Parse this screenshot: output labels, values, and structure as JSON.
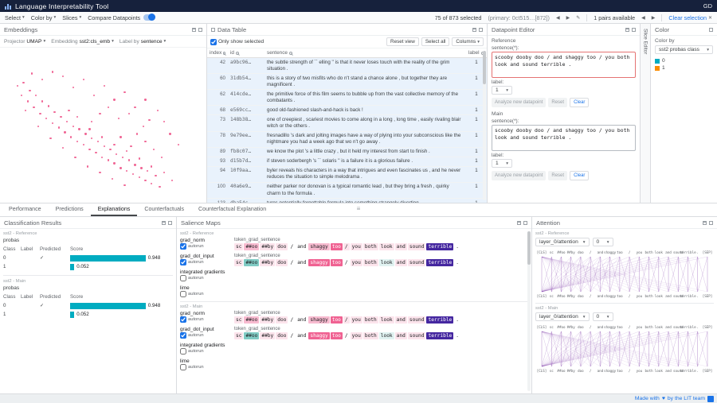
{
  "header": {
    "title": "Language Interpretability Tool",
    "user": "GD"
  },
  "toolbar": {
    "select": "Select",
    "color_by": "Color by",
    "slices": "Slices",
    "compare": "Compare Datapoints",
    "selection": "75 of 873 selected",
    "primary": "(primary: 0ct515…[872])",
    "pairs": "1 pairs available",
    "clear": "Clear selection"
  },
  "embeddings": {
    "title": "Embeddings",
    "controls": [
      {
        "label": "Projector",
        "value": "UMAP"
      },
      {
        "label": "Embedding",
        "value": "sst2:cls_emb"
      },
      {
        "label": "Label by",
        "value": "sentence"
      }
    ],
    "dot_color": "#ec407a",
    "points": [
      [
        8,
        24
      ],
      [
        10,
        30
      ],
      [
        11,
        22
      ],
      [
        13,
        34
      ],
      [
        14,
        27
      ],
      [
        16,
        38
      ],
      [
        17,
        30
      ],
      [
        19,
        42
      ],
      [
        20,
        34
      ],
      [
        22,
        45
      ],
      [
        23,
        37
      ],
      [
        25,
        48
      ],
      [
        26,
        41
      ],
      [
        28,
        51
      ],
      [
        29,
        44
      ],
      [
        31,
        54
      ],
      [
        32,
        47
      ],
      [
        34,
        57
      ],
      [
        35,
        50
      ],
      [
        37,
        60
      ],
      [
        38,
        52
      ],
      [
        40,
        62
      ],
      [
        41,
        55
      ],
      [
        43,
        65
      ],
      [
        44,
        58
      ],
      [
        46,
        67
      ],
      [
        47,
        60
      ],
      [
        49,
        70
      ],
      [
        50,
        63
      ],
      [
        52,
        72
      ],
      [
        53,
        65
      ],
      [
        55,
        74
      ],
      [
        56,
        68
      ],
      [
        58,
        77
      ],
      [
        59,
        70
      ],
      [
        61,
        79
      ],
      [
        62,
        72
      ],
      [
        64,
        81
      ],
      [
        65,
        75
      ],
      [
        67,
        83
      ],
      [
        68,
        77
      ],
      [
        70,
        85
      ],
      [
        71,
        79
      ],
      [
        73,
        87
      ],
      [
        75,
        82
      ],
      [
        77,
        89
      ],
      [
        35,
        25
      ],
      [
        40,
        20
      ],
      [
        45,
        30
      ],
      [
        50,
        24
      ],
      [
        55,
        33
      ],
      [
        60,
        28
      ],
      [
        65,
        38
      ],
      [
        70,
        33
      ],
      [
        48,
        42
      ],
      [
        52,
        38
      ],
      [
        57,
        45
      ],
      [
        62,
        42
      ],
      [
        30,
        18
      ],
      [
        25,
        15
      ],
      [
        66,
        55
      ],
      [
        70,
        60
      ],
      [
        74,
        65
      ],
      [
        78,
        70
      ],
      [
        20,
        20
      ],
      [
        15,
        16
      ],
      [
        44,
        47
      ],
      [
        58,
        57
      ],
      [
        63,
        63
      ],
      [
        12,
        40
      ],
      [
        18,
        50
      ],
      [
        24,
        58
      ],
      [
        30,
        64
      ],
      [
        36,
        70
      ],
      [
        42,
        76
      ],
      [
        48,
        80
      ],
      [
        54,
        84
      ],
      [
        60,
        88
      ],
      [
        33,
        40
      ],
      [
        37,
        44
      ],
      [
        43,
        52
      ],
      [
        49,
        57
      ],
      [
        55,
        62
      ],
      [
        61,
        66
      ],
      [
        67,
        71
      ],
      [
        73,
        76
      ],
      [
        79,
        80
      ],
      [
        83,
        85
      ],
      [
        86,
        62
      ],
      [
        82,
        55
      ],
      [
        79,
        47
      ],
      [
        76,
        40
      ],
      [
        72,
        46
      ],
      [
        69,
        50
      ]
    ]
  },
  "data_table": {
    "title": "Data Table",
    "only_show_selected": "Only show selected",
    "reset_view": "Reset view",
    "select_all": "Select all",
    "columns": "Columns",
    "headers": [
      "index",
      "id",
      "sentence",
      "label"
    ],
    "rows": [
      {
        "index": "42",
        "id": "a9bc96…",
        "sentence": "the subtle strength of `` elling '' is that it never loses touch with the reality of the grim situation .",
        "label": "1"
      },
      {
        "index": "60",
        "id": "31db54…",
        "sentence": "this is a story of two misfits who do n't stand a chance alone , but together they are magnificent .",
        "label": "1"
      },
      {
        "index": "62",
        "id": "414cde…",
        "sentence": "the primitive force of this film seems to bubble up from the vast collective memory of the combatants .",
        "label": "1"
      },
      {
        "index": "68",
        "id": "e569cc…",
        "sentence": "good old-fashioned slash-and-hack is back !",
        "label": "1"
      },
      {
        "index": "73",
        "id": "148b38…",
        "sentence": "one of creepiest , scariest movies to come along in a long , long time , easily rivaling blair witch or the others .",
        "label": "1"
      },
      {
        "index": "78",
        "id": "9e79ee…",
        "sentence": "fresnadillo 's dark and jolting images have a way of plying into your subconscious like the nightmare you had a week ago that wo n't go away .",
        "label": "1"
      },
      {
        "index": "89",
        "id": "fb8c07…",
        "sentence": "we know the plot 's a little crazy , but it held my interest from start to finish .",
        "label": "1"
      },
      {
        "index": "93",
        "id": "d15b7d…",
        "sentence": "if steven soderbergh 's `` solaris '' is a failure it is a glorious failure .",
        "label": "1"
      },
      {
        "index": "94",
        "id": "10f9aa…",
        "sentence": "byler reveals his characters in a way that intrigues and even fascinates us , and he never reduces the situation to simple melodrama .",
        "label": "1"
      },
      {
        "index": "100",
        "id": "40a6e9…",
        "sentence": "neither parker nor donovan is a typical romantic lead , but they bring a fresh , quirky charm to the formula .",
        "label": "1"
      },
      {
        "index": "123",
        "id": "dba54c…",
        "sentence": "turns potentially forgettable formula into something strangely diverting .",
        "label": "1"
      }
    ]
  },
  "editor": {
    "title": "Datapoint Editor",
    "buttons": {
      "analyze": "Analyze new datapoint",
      "reset": "Reset",
      "clear": "Clear"
    },
    "sections": [
      {
        "name": "Reference",
        "field": "sentence(*):",
        "text": "scooby dooby doo / and shaggy too / you both look and sound terrible .",
        "label_field": "label:",
        "label_value": "1"
      },
      {
        "name": "Main",
        "field": "sentence(*):",
        "text": "scooby dooby doo / and shaggy too / you both look and sound terrible .",
        "label_field": "label:",
        "label_value": "1"
      }
    ]
  },
  "vertical_tab": "Slice Editor",
  "color_module": {
    "title": "Color",
    "color_by": "Color by",
    "value": "sst2 probas class",
    "legend": [
      {
        "label": "0",
        "color": "#00acc1"
      },
      {
        "label": "1",
        "color": "#fb8c00"
      }
    ]
  },
  "tabs": [
    "Performance",
    "Predictions",
    "Explanations",
    "Counterfactuals",
    "Counterfactual Explanation"
  ],
  "active_tab": "Explanations",
  "classification": {
    "title": "Classification Results",
    "groups": [
      {
        "model": "sst2 - Reference",
        "field": "probas",
        "headers": [
          "Class",
          "Label",
          "Predicted"
        ],
        "score_header": "Score",
        "rows": [
          {
            "class": "0",
            "label": "",
            "predicted": true,
            "score": "0.948"
          },
          {
            "class": "1",
            "label": "",
            "predicted": false,
            "score": "0.052"
          }
        ]
      },
      {
        "model": "sst2 - Main",
        "field": "probas",
        "headers": [
          "Class",
          "Label",
          "Predicted"
        ],
        "score_header": "Score",
        "rows": [
          {
            "class": "0",
            "label": "",
            "predicted": true,
            "score": "0.948"
          },
          {
            "class": "1",
            "label": "",
            "predicted": false,
            "score": "0.052"
          }
        ]
      }
    ]
  },
  "salience": {
    "title": "Salience Maps",
    "autorun_label": "autorun",
    "groups": [
      {
        "model": "sst2 - Reference",
        "rows": [
          {
            "method": "grad_norm",
            "field": "token_grad_sentence",
            "autorun": true,
            "tokens": [
              [
                "sc",
                "p1"
              ],
              [
                "##oo",
                "p2"
              ],
              [
                "##by",
                "p1"
              ],
              [
                "doo",
                "p1"
              ],
              [
                "/",
                "p0"
              ],
              [
                "and",
                "p0"
              ],
              [
                "shaggy",
                "p2"
              ],
              [
                "too",
                "p3"
              ],
              [
                "/",
                "p1"
              ],
              [
                "you",
                "p1"
              ],
              [
                "both",
                "p1"
              ],
              [
                "look",
                "p1"
              ],
              [
                "and",
                "p1"
              ],
              [
                "sound",
                "p1"
              ],
              [
                "terrible",
                "p4"
              ],
              [
                ".",
                "p0"
              ]
            ]
          },
          {
            "method": "grad_dot_input",
            "field": "token_grad_sentence",
            "autorun": true,
            "tokens": [
              [
                "sc",
                "p1"
              ],
              [
                "##oo",
                "n2"
              ],
              [
                "##by",
                "p1"
              ],
              [
                "doo",
                "p1"
              ],
              [
                "/",
                "p0"
              ],
              [
                "and",
                "p0"
              ],
              [
                "shaggy",
                "p3"
              ],
              [
                "too",
                "p3"
              ],
              [
                "/",
                "p0"
              ],
              [
                "you",
                "p1"
              ],
              [
                "both",
                "p1"
              ],
              [
                "look",
                "n1"
              ],
              [
                "and",
                "p1"
              ],
              [
                "sound",
                "p1"
              ],
              [
                "terrible",
                "p4"
              ],
              [
                ".",
                "p0"
              ]
            ]
          },
          {
            "method": "integrated gradients",
            "autorun": false
          },
          {
            "method": "lime",
            "autorun": false
          }
        ]
      },
      {
        "model": "sst2 - Main",
        "rows": [
          {
            "method": "grad_norm",
            "field": "token_grad_sentence",
            "autorun": true,
            "tokens": [
              [
                "sc",
                "p1"
              ],
              [
                "##oo",
                "p2"
              ],
              [
                "##by",
                "p1"
              ],
              [
                "doo",
                "p1"
              ],
              [
                "/",
                "p0"
              ],
              [
                "and",
                "p0"
              ],
              [
                "shaggy",
                "p2"
              ],
              [
                "too",
                "p3"
              ],
              [
                "/",
                "p1"
              ],
              [
                "you",
                "p1"
              ],
              [
                "both",
                "p1"
              ],
              [
                "look",
                "p1"
              ],
              [
                "and",
                "p1"
              ],
              [
                "sound",
                "p1"
              ],
              [
                "terrible",
                "p4"
              ],
              [
                ".",
                "p0"
              ]
            ]
          },
          {
            "method": "grad_dot_input",
            "field": "token_grad_sentence",
            "autorun": true,
            "tokens": [
              [
                "sc",
                "p1"
              ],
              [
                "##oo",
                "n2"
              ],
              [
                "##by",
                "p1"
              ],
              [
                "doo",
                "p1"
              ],
              [
                "/",
                "p0"
              ],
              [
                "and",
                "p0"
              ],
              [
                "shaggy",
                "p3"
              ],
              [
                "too",
                "p3"
              ],
              [
                "/",
                "p0"
              ],
              [
                "you",
                "p1"
              ],
              [
                "both",
                "p1"
              ],
              [
                "look",
                "n1"
              ],
              [
                "and",
                "p1"
              ],
              [
                "sound",
                "p1"
              ],
              [
                "terrible",
                "p4"
              ],
              [
                ".",
                "p0"
              ]
            ]
          },
          {
            "method": "integrated gradients",
            "autorun": false
          },
          {
            "method": "lime",
            "autorun": false
          }
        ]
      }
    ]
  },
  "attention": {
    "title": "Attention",
    "groups": [
      {
        "model": "sst2 - Reference",
        "layer": "layer_0/attention",
        "head": "0",
        "tokens": [
          "[CLS]",
          "sc",
          "##oo",
          "##by",
          "doo",
          "/",
          "and",
          "shaggy",
          "too",
          "/",
          "you",
          "both",
          "look",
          "and",
          "sound",
          "terrible",
          ".",
          "[SEP]"
        ]
      },
      {
        "model": "sst2 - Main",
        "layer": "layer_0/attention",
        "head": "0",
        "tokens": [
          "[CLS]",
          "sc",
          "##oo",
          "##by",
          "doo",
          "/",
          "and",
          "shaggy",
          "too",
          "/",
          "you",
          "both",
          "look",
          "and",
          "sound",
          "terrible",
          ".",
          "[SEP]"
        ]
      }
    ]
  },
  "footer": {
    "prefix": "Made with",
    "heart": "♥",
    "suffix": "by the LIT team"
  }
}
